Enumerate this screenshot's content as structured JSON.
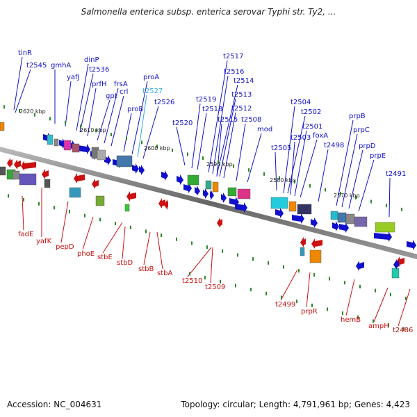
{
  "title": "Salmonella enterica subsp. enterica serovar Typhi str. Ty2, ...",
  "accession": "Accession: NC_004631",
  "summary": "Topology: circular; Length: 4,791,961 bp; Genes: 4,423",
  "colors": {
    "forward": "#1010cc",
    "reverse": "#cc1010",
    "highlight": "#33aadd",
    "tick": "#2a8a2a",
    "backbone": "#777777"
  },
  "scale_labels": [
    "2620 kbp",
    "2610 kbp",
    "2600 kbp",
    "2590 kbp",
    "2580 kbp",
    "2570 kbp"
  ],
  "top_labels": [
    "tinR",
    "t2545",
    "gmhA",
    "yafJ",
    "dinP",
    "t2536",
    "prfH",
    "gpt",
    "frsA",
    "crl",
    "proB",
    "proA",
    "t2527",
    "t2526",
    "t2520",
    "t2519",
    "t2518",
    "t2517",
    "t2516",
    "t2514",
    "t2515",
    "t2513",
    "t2512",
    "t2508",
    "mod",
    "t2505",
    "t2504",
    "t2502",
    "t2503",
    "t2501",
    "foxA",
    "t2498",
    "prpB",
    "prpC",
    "prpD",
    "prpE",
    "t2491"
  ],
  "bottom_labels": [
    "fadE",
    "yafK",
    "pepD",
    "phoE",
    "stbE",
    "stbD",
    "stbB",
    "stbA",
    "t2510",
    "t2509",
    "t2499",
    "prpR",
    "hemB",
    "ampH",
    "t2486"
  ]
}
